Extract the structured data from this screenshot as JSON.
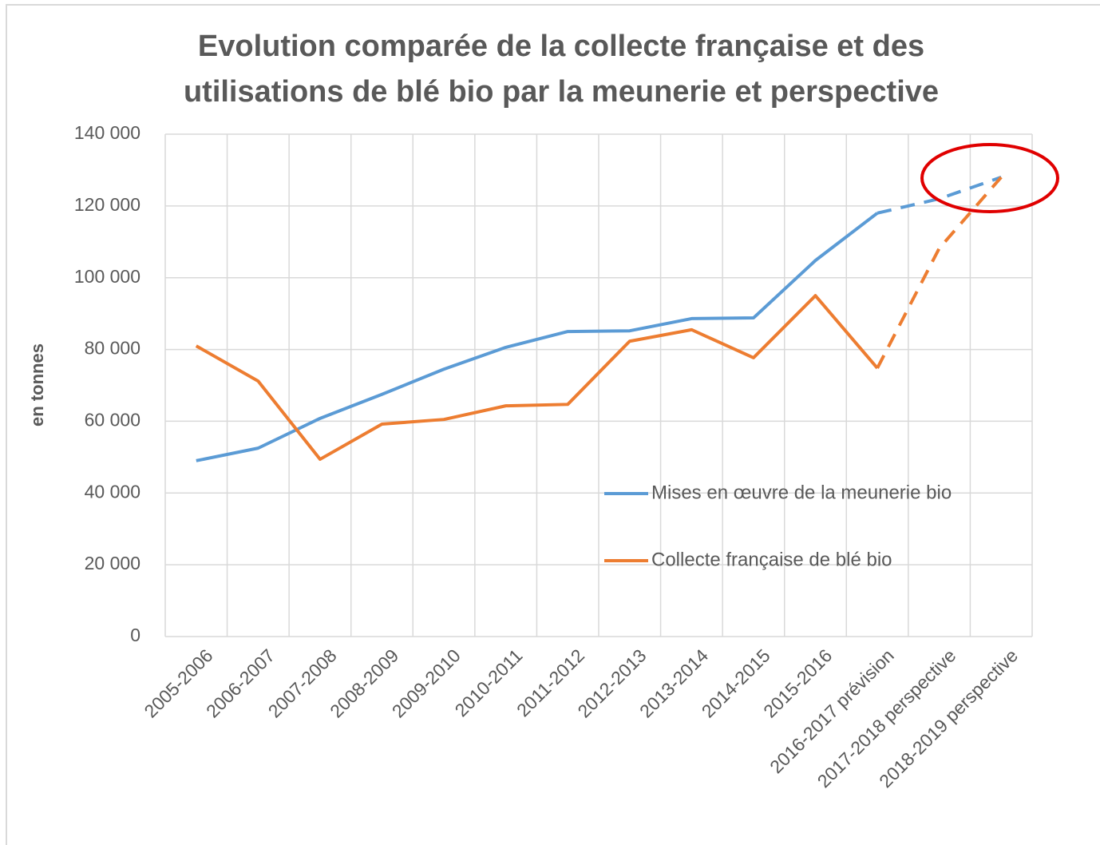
{
  "chart_data": {
    "type": "line",
    "title": [
      "Evolution comparée de la collecte française et des",
      "utilisations de blé bio par la meunerie et perspective"
    ],
    "y_label": "en tonnes",
    "categories": [
      "2005-2006",
      "2006-2007",
      "2007-2008",
      "2008-2009",
      "2009-2010",
      "2010-2011",
      "2011-2012",
      "2012-2013",
      "2013-2014",
      "2014-2015",
      "2015-2016",
      "2016-2017 prévision",
      "2017-2018 perspective",
      "2018-2019 perspective"
    ],
    "series": [
      {
        "name": "Mises en œuvre de la meunerie bio",
        "color": "#5b9bd5",
        "values": [
          49000,
          52500,
          60800,
          67500,
          74500,
          80600,
          85000,
          85200,
          88600,
          88800,
          104800,
          118000,
          122000,
          128000
        ]
      },
      {
        "name": "Collecte française de blé bio",
        "color": "#ed7d31",
        "values": [
          81000,
          71200,
          49400,
          59200,
          60500,
          64300,
          64700,
          82300,
          85500,
          77700,
          95000,
          74800,
          108200,
          128000
        ]
      }
    ],
    "dash_start": 11,
    "ylim": [
      0,
      140000
    ],
    "yticks": [
      0,
      {
        "value": 20000,
        "label": "20 000"
      },
      {
        "value": 40000,
        "label": "40 000"
      },
      {
        "value": 60000,
        "label": "60 000"
      },
      {
        "value": 80000,
        "label": "80 000"
      },
      {
        "value": 100000,
        "label": "100 000"
      },
      {
        "value": 120000,
        "label": "120 000"
      },
      {
        "value": 140000,
        "label": "140 000"
      }
    ],
    "grid": true,
    "legend": "lower right"
  }
}
